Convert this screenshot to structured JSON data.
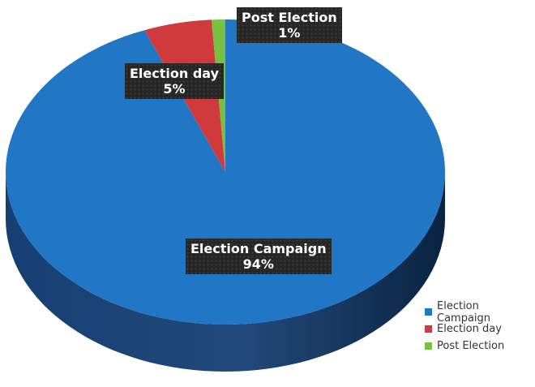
{
  "chart_data": {
    "type": "pie",
    "categories": [
      "Election Campaign",
      "Election day",
      "Post Election"
    ],
    "values": [
      94,
      5,
      1
    ],
    "value_labels": [
      "94%",
      "5%",
      "1%"
    ],
    "colors": [
      "#2176c6",
      "#d03a3c",
      "#77c043"
    ],
    "side_colors": [
      "#163f73",
      "#7a1f21",
      "#3f6e22"
    ],
    "legend": {
      "position": "right",
      "entries": [
        "Election Campaign",
        "Election day",
        "Post Election"
      ]
    },
    "title": ""
  }
}
